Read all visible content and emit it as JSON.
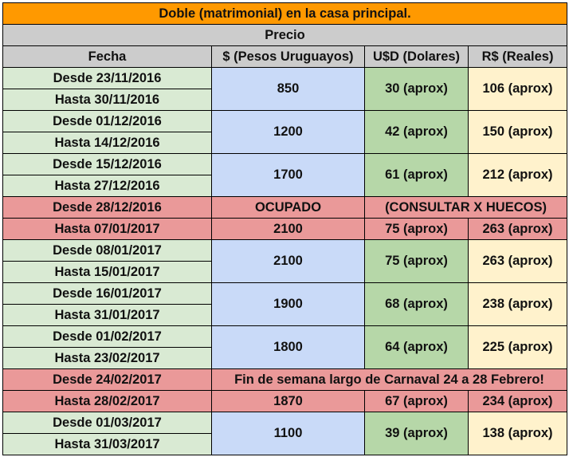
{
  "title": "Doble (matrimonial) en la casa principal.",
  "precio": "Precio",
  "headers": {
    "fecha": "Fecha",
    "pesos": "$ (Pesos Uruguayos)",
    "usd": "U$D (Dolares)",
    "brl": "R$ (Reales)"
  },
  "colors": {
    "title": "#ff9900",
    "header": "#cccccc",
    "fecha": "#d9ead3",
    "pesos": "#c9daf8",
    "usd": "#b6d7a8",
    "brl": "#fff2cc",
    "occupied": "#ea9999"
  },
  "periods": [
    {
      "desde": "Desde 23/11/2016",
      "hasta": "Hasta 30/11/2016",
      "pesos": "850",
      "usd": "30 (aprox)",
      "brl": "106 (aprox)"
    },
    {
      "desde": "Desde 01/12/2016",
      "hasta": "Hasta 14/12/2016",
      "pesos": "1200",
      "usd": "42 (aprox)",
      "brl": "150 (aprox)"
    },
    {
      "desde": "Desde 15/12/2016",
      "hasta": "Hasta 27/12/2016",
      "pesos": "1700",
      "usd": "61 (aprox)",
      "brl": "212 (aprox)"
    },
    {
      "desde": "Desde 28/12/2016",
      "hasta": "Hasta 07/01/2017",
      "note_pesos": "OCUPADO",
      "note_rest": "(CONSULTAR X HUECOS)",
      "pesos": "2100",
      "usd": "75 (aprox)",
      "brl": "263 (aprox)"
    },
    {
      "desde": "Desde 08/01/2017",
      "hasta": "Hasta 15/01/2017",
      "pesos": "2100",
      "usd": "75 (aprox)",
      "brl": "263 (aprox)"
    },
    {
      "desde": "Desde 16/01/2017",
      "hasta": "Hasta 31/01/2017",
      "pesos": "1900",
      "usd": "68 (aprox)",
      "brl": "238 (aprox)"
    },
    {
      "desde": "Desde 01/02/2017",
      "hasta": "Hasta 23/02/2017",
      "pesos": "1800",
      "usd": "64 (aprox)",
      "brl": "225 (aprox)"
    },
    {
      "desde": "Desde 24/02/2017",
      "hasta": "Hasta 28/02/2017",
      "note": "Fin de semana largo de Carnaval 24 a 28 Febrero!",
      "pesos": "1870",
      "usd": "67 (aprox)",
      "brl": "234 (aprox)"
    },
    {
      "desde": "Desde 01/03/2017",
      "hasta": "Hasta 31/03/2017",
      "pesos": "1100",
      "usd": "39 (aprox)",
      "brl": "138 (aprox)"
    }
  ]
}
